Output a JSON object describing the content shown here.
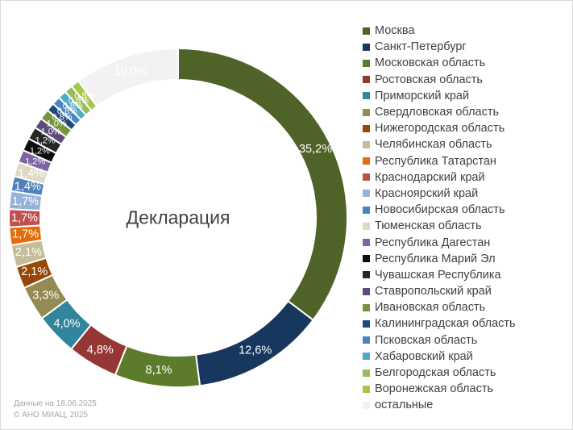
{
  "chart_data": {
    "type": "pie",
    "center_label": "Декларация",
    "legend_position": "right",
    "slices": [
      {
        "name": "Москва",
        "value": 35.2,
        "label": "35,2%",
        "color": "#4f6228"
      },
      {
        "name": "Санкт-Петербург",
        "value": 12.6,
        "label": "12,6%",
        "color": "#17375e"
      },
      {
        "name": "Московская область",
        "value": 8.1,
        "label": "8,1%",
        "color": "#5d7c2b"
      },
      {
        "name": "Ростовская область",
        "value": 4.8,
        "label": "4,8%",
        "color": "#953735"
      },
      {
        "name": "Приморский край",
        "value": 4.0,
        "label": "4,0%",
        "color": "#31859c"
      },
      {
        "name": "Свердловская область",
        "value": 3.3,
        "label": "3,3%",
        "color": "#948a54"
      },
      {
        "name": "Нижегородская область",
        "value": 2.1,
        "label": "2,1%",
        "color": "#974806"
      },
      {
        "name": "Челябинская область",
        "value": 2.1,
        "label": "2,1%",
        "color": "#c4bd97"
      },
      {
        "name": "Республика Татарстан",
        "value": 1.7,
        "label": "1,7%",
        "color": "#e46c0a"
      },
      {
        "name": "Краснодарский край",
        "value": 1.7,
        "label": "1,7%",
        "color": "#c0504d"
      },
      {
        "name": "Красноярский край",
        "value": 1.7,
        "label": "1,7%",
        "color": "#95b3d7"
      },
      {
        "name": "Новосибирская область",
        "value": 1.4,
        "label": "1,4%",
        "color": "#4f81bd"
      },
      {
        "name": "Тюменская область",
        "value": 1.4,
        "label": "1,4%",
        "color": "#ddd9c4"
      },
      {
        "name": "Республика Дагестан",
        "value": 1.2,
        "label": "1,2%",
        "color": "#8064a2"
      },
      {
        "name": "Республика Марий Эл",
        "value": 1.2,
        "label": "1,2%",
        "color": "#0d0d0d"
      },
      {
        "name": "Чувашская Республика",
        "value": 1.2,
        "label": "1,2%",
        "color": "#262626"
      },
      {
        "name": "Ставропольский край",
        "value": 1.0,
        "label": "1,0%",
        "color": "#5f4a7a"
      },
      {
        "name": "Ивановская область",
        "value": 1.0,
        "label": "1,0%",
        "color": "#77933c"
      },
      {
        "name": "Калининградская область",
        "value": 0.8,
        "label": "0,8%",
        "color": "#1f497d"
      },
      {
        "name": "Псковская область",
        "value": 0.8,
        "label": "0,8%",
        "color": "#4a86c6"
      },
      {
        "name": "Хабаровский край",
        "value": 0.8,
        "label": "0,8%",
        "color": "#4bacc6"
      },
      {
        "name": "Белгородская область",
        "value": 0.8,
        "label": "0,8%",
        "color": "#9bbb59"
      },
      {
        "name": "Воронежская область",
        "value": 0.8,
        "label": "0,8%",
        "color": "#a6c64b"
      },
      {
        "name": "остальные",
        "value": 10.0,
        "label": "10,0%",
        "color": "#f2f2f2"
      }
    ]
  },
  "footnote": {
    "date_line": "Данные на 18.06.2025",
    "copyright_line": "© АНО МИАЦ, 2025"
  }
}
